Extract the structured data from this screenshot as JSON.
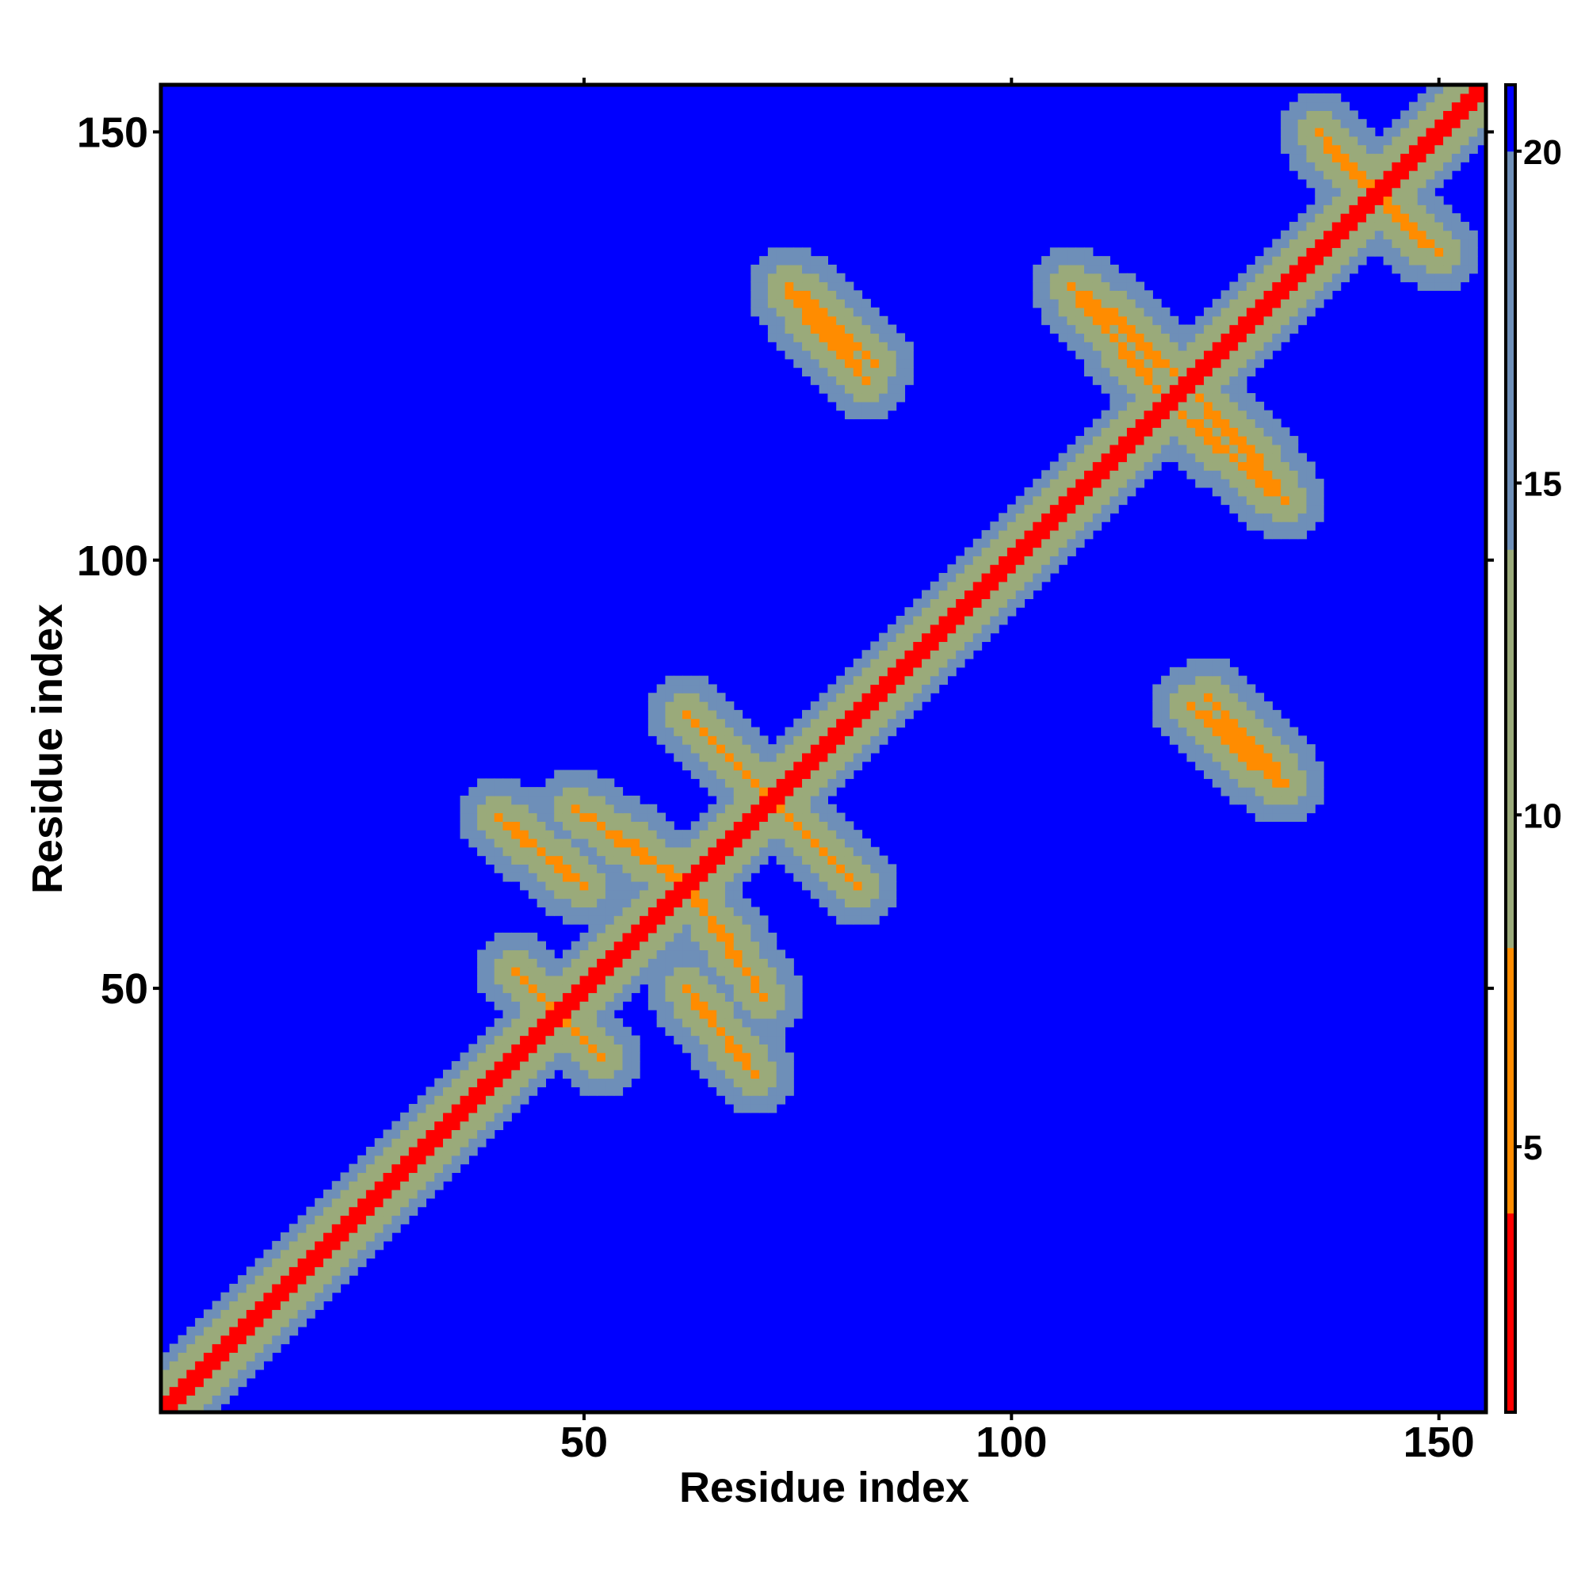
{
  "chart_data": {
    "type": "heatmap",
    "title": "",
    "xlabel": "Residue index",
    "ylabel": "Residue index",
    "xlim": [
      1,
      155
    ],
    "ylim": [
      1,
      155
    ],
    "x_ticks": [
      "50",
      "100",
      "150"
    ],
    "y_ticks": [
      "50",
      "100",
      "150"
    ],
    "colorbar": {
      "range": [
        1,
        21
      ],
      "ticks": [
        "5",
        "10",
        "15",
        "20"
      ],
      "colors": {
        "near": "#ff0000",
        "close": "#ff8c00",
        "mid": "#9aaa7a",
        "far": "#6e8fb8",
        "background": "#0000ff"
      }
    },
    "description_values": {
      "main_diagonal": {
        "value": 1
      },
      "contact_bands": [
        {
          "x": [
            42,
            52
          ],
          "y": [
            52,
            42
          ],
          "value": 6
        },
        {
          "x": [
            62,
            70
          ],
          "y": [
            50,
            40
          ],
          "value": 6
        },
        {
          "x": [
            49,
            62
          ],
          "y": [
            71,
            62
          ],
          "value": 6
        },
        {
          "x": [
            62,
            70
          ],
          "y": [
            82,
            74
          ],
          "value": 6
        },
        {
          "x": [
            72,
            82
          ],
          "y": [
            72,
            62
          ],
          "value": 6
        },
        {
          "x": [
            74,
            83
          ],
          "y": [
            131,
            121
          ],
          "value": 6
        },
        {
          "x": [
            109,
            120
          ],
          "y": [
            131,
            121
          ],
          "value": 6
        },
        {
          "x": [
            120,
            132
          ],
          "y": [
            117,
            107
          ],
          "value": 6
        },
        {
          "x": [
            123,
            132
          ],
          "y": [
            84,
            74
          ],
          "value": 6
        },
        {
          "x": [
            137,
            150
          ],
          "y": [
            148,
            136
          ],
          "value": 6
        }
      ]
    }
  }
}
